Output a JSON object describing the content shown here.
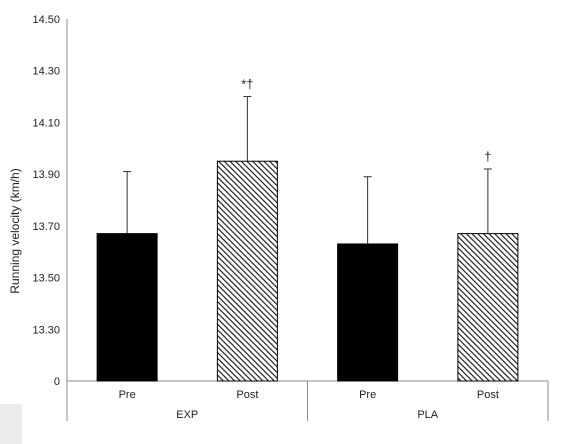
{
  "chart_data": {
    "type": "bar",
    "ylabel": "Running velocity (km/h)",
    "y_ticks": [
      "0",
      "13.30",
      "13.50",
      "13.70",
      "13.90",
      "14.10",
      "14.30",
      "14.50"
    ],
    "y_tick_values": [
      13.1,
      13.3,
      13.5,
      13.7,
      13.9,
      14.1,
      14.3,
      14.5
    ],
    "ylim": [
      13.1,
      14.5
    ],
    "axis_break": true,
    "grid": false,
    "groups": [
      {
        "label": "EXP",
        "bars": [
          {
            "category": "Pre",
            "value": 13.67,
            "error": 0.24,
            "fill": "solid",
            "annotation": ""
          },
          {
            "category": "Post",
            "value": 13.95,
            "error": 0.25,
            "fill": "hatched",
            "annotation": "*†"
          }
        ]
      },
      {
        "label": "PLA",
        "bars": [
          {
            "category": "Pre",
            "value": 13.63,
            "error": 0.26,
            "fill": "solid",
            "annotation": ""
          },
          {
            "category": "Post",
            "value": 13.67,
            "error": 0.25,
            "fill": "hatched",
            "annotation": "†"
          }
        ]
      }
    ]
  },
  "colors": {
    "bar_solid": "#000000",
    "hatch": "#111111",
    "axis": "#8c8c8c",
    "error_bar": "#333333",
    "corner": "#ebebeb"
  }
}
